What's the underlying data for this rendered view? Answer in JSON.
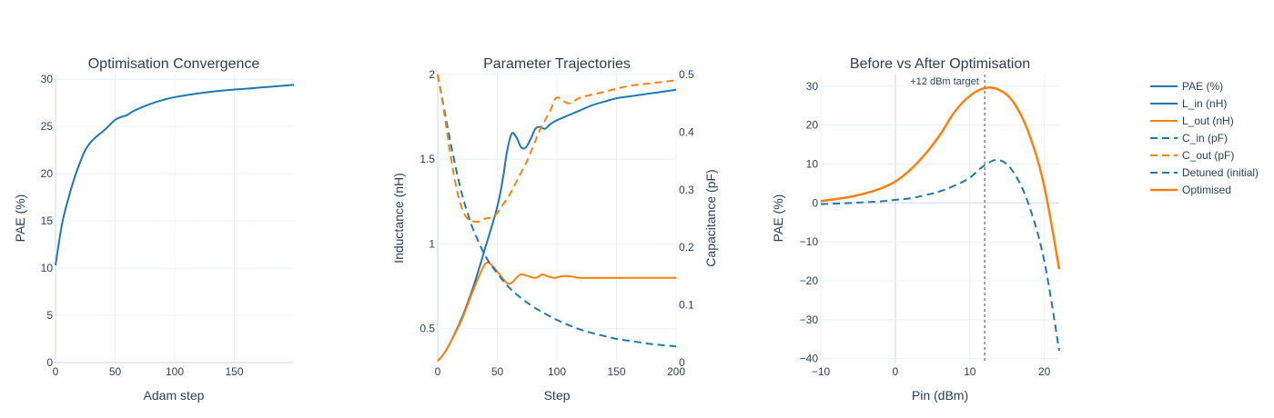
{
  "colors": {
    "blue": "#1f77b4",
    "orange": "#ff7f0e",
    "text": "#2a3f5f",
    "grid": "#ebf0f8",
    "vline": "#808080"
  },
  "chart_data": [
    {
      "type": "line",
      "title": "Optimisation Convergence",
      "xlabel": "Adam step",
      "ylabel": "PAE (%)",
      "xlim": [
        0,
        200
      ],
      "ylim": [
        0,
        30.5
      ],
      "xticks": [
        0,
        50,
        100,
        150
      ],
      "xtick_labels": [
        "0",
        "50",
        "100",
        "150"
      ],
      "yticks": [
        0,
        5,
        10,
        15,
        20,
        25,
        30
      ],
      "ytick_labels": [
        "0",
        "5",
        "10",
        "15",
        "20",
        "25",
        "30"
      ],
      "series": [
        {
          "name": "PAE (%)",
          "color": "#1f77b4",
          "dash": "solid",
          "x": [
            0,
            3,
            6,
            10,
            15,
            20,
            25,
            30,
            35,
            40,
            45,
            50,
            55,
            60,
            65,
            70,
            80,
            90,
            100,
            120,
            140,
            160,
            180,
            200
          ],
          "y": [
            10.3,
            12.8,
            15.0,
            17.0,
            19.2,
            21.0,
            22.5,
            23.4,
            24.0,
            24.5,
            25.1,
            25.7,
            26.0,
            26.2,
            26.6,
            26.9,
            27.4,
            27.8,
            28.1,
            28.5,
            28.8,
            29.0,
            29.2,
            29.4
          ]
        }
      ]
    },
    {
      "type": "line",
      "title": "Parameter Trajectories",
      "xlabel": "Step",
      "ylabel": "Inductance (nH)",
      "y2label": "Capacitance (pF)",
      "xlim": [
        0,
        200
      ],
      "ylim": [
        0.3,
        2.0
      ],
      "y2lim": [
        0,
        0.5
      ],
      "xticks": [
        0,
        50,
        100,
        150,
        200
      ],
      "xtick_labels": [
        "0",
        "50",
        "100",
        "150",
        "200"
      ],
      "yticks": [
        0.5,
        1,
        1.5,
        2
      ],
      "ytick_labels": [
        "0.5",
        "1",
        "1.5",
        "2"
      ],
      "y2ticks": [
        0,
        0.1,
        0.2,
        0.3,
        0.4,
        0.5
      ],
      "y2tick_labels": [
        "0",
        "0.1",
        "0.2",
        "0.3",
        "0.4",
        "0.5"
      ],
      "series": [
        {
          "name": "L_in (nH)",
          "color": "#1f77b4",
          "dash": "solid",
          "axis": "y",
          "x": [
            0,
            5,
            10,
            20,
            30,
            40,
            50,
            55,
            58,
            62,
            66,
            70,
            74,
            78,
            82,
            86,
            90,
            95,
            100,
            110,
            120,
            130,
            140,
            150,
            160,
            170,
            180,
            190,
            200
          ],
          "y": [
            0.31,
            0.35,
            0.41,
            0.56,
            0.75,
            0.98,
            1.22,
            1.4,
            1.54,
            1.65,
            1.63,
            1.57,
            1.57,
            1.62,
            1.68,
            1.69,
            1.68,
            1.71,
            1.73,
            1.76,
            1.79,
            1.82,
            1.84,
            1.86,
            1.87,
            1.88,
            1.89,
            1.9,
            1.91
          ]
        },
        {
          "name": "L_out (nH)",
          "color": "#ff7f0e",
          "dash": "solid",
          "axis": "y",
          "x": [
            0,
            5,
            10,
            20,
            30,
            38,
            42,
            46,
            52,
            58,
            62,
            66,
            70,
            76,
            82,
            88,
            92,
            98,
            104,
            110,
            120,
            140,
            160,
            180,
            200
          ],
          "y": [
            0.31,
            0.35,
            0.41,
            0.55,
            0.73,
            0.86,
            0.89,
            0.87,
            0.82,
            0.77,
            0.77,
            0.8,
            0.82,
            0.81,
            0.8,
            0.82,
            0.81,
            0.8,
            0.81,
            0.81,
            0.8,
            0.8,
            0.8,
            0.8,
            0.8
          ]
        },
        {
          "name": "C_in (pF)",
          "color": "#1f77b4",
          "dash": "dash",
          "axis": "y2",
          "x": [
            0,
            5,
            10,
            15,
            20,
            25,
            30,
            40,
            50,
            60,
            70,
            80,
            90,
            100,
            110,
            120,
            130,
            140,
            150,
            160,
            170,
            180,
            190,
            200
          ],
          "y": [
            0.5,
            0.445,
            0.39,
            0.34,
            0.295,
            0.26,
            0.23,
            0.185,
            0.155,
            0.13,
            0.112,
            0.097,
            0.085,
            0.074,
            0.065,
            0.057,
            0.051,
            0.046,
            0.041,
            0.038,
            0.035,
            0.032,
            0.03,
            0.028
          ]
        },
        {
          "name": "C_out (pF)",
          "color": "#ff7f0e",
          "dash": "dash",
          "axis": "y2",
          "x": [
            0,
            5,
            10,
            15,
            20,
            25,
            30,
            35,
            40,
            45,
            50,
            55,
            60,
            65,
            70,
            75,
            80,
            85,
            90,
            95,
            100,
            110,
            120,
            140,
            160,
            180,
            200
          ],
          "y": [
            0.5,
            0.44,
            0.37,
            0.31,
            0.27,
            0.25,
            0.245,
            0.245,
            0.25,
            0.252,
            0.26,
            0.275,
            0.29,
            0.31,
            0.33,
            0.35,
            0.375,
            0.4,
            0.42,
            0.44,
            0.46,
            0.45,
            0.46,
            0.47,
            0.48,
            0.485,
            0.49
          ]
        }
      ]
    },
    {
      "type": "line",
      "title": "Before vs After Optimisation",
      "xlabel": "Pin (dBm)",
      "ylabel": "PAE (%)",
      "xlim": [
        -10,
        22
      ],
      "ylim": [
        -41,
        33
      ],
      "xticks": [
        -10,
        0,
        10,
        20
      ],
      "xtick_labels": [
        "−10",
        "0",
        "10",
        "20"
      ],
      "yticks": [
        -40,
        -30,
        -20,
        -10,
        0,
        10,
        20,
        30
      ],
      "ytick_labels": [
        "−40",
        "−30",
        "−20",
        "−10",
        "0",
        "10",
        "20",
        "30"
      ],
      "vline": {
        "x": 12,
        "label": "+12 dBm target"
      },
      "series": [
        {
          "name": "Detuned (initial)",
          "color": "#1f77b4",
          "dash": "dash",
          "x": [
            -10,
            -6,
            -4,
            -2,
            0,
            2,
            4,
            6,
            8,
            10,
            12,
            14,
            16,
            18,
            20,
            22
          ],
          "y": [
            -0.3,
            0,
            0.2,
            0.4,
            0.8,
            1.2,
            2,
            3,
            4.5,
            6.5,
            9.7,
            11,
            7.5,
            -1,
            -15,
            -38
          ]
        },
        {
          "name": "Optimised",
          "color": "#ff7f0e",
          "dash": "solid",
          "x": [
            -10,
            -8,
            -6,
            -4,
            -2,
            0,
            2,
            4,
            6,
            8,
            10,
            12,
            14,
            16,
            18,
            20,
            22
          ],
          "y": [
            0.5,
            1,
            1.6,
            2.5,
            3.7,
            5.5,
            8.5,
            12.5,
            17.5,
            23.5,
            27.5,
            29.5,
            29,
            25.5,
            17.5,
            4.2,
            -17
          ]
        }
      ]
    }
  ],
  "legend": {
    "items": [
      {
        "label": "PAE (%)",
        "color": "#1f77b4",
        "dash": "solid"
      },
      {
        "label": "L_in (nH)",
        "color": "#1f77b4",
        "dash": "solid"
      },
      {
        "label": "L_out (nH)",
        "color": "#ff7f0e",
        "dash": "solid"
      },
      {
        "label": "C_in (pF)",
        "color": "#1f77b4",
        "dash": "dash"
      },
      {
        "label": "C_out (pF)",
        "color": "#ff7f0e",
        "dash": "dash"
      },
      {
        "label": "Detuned (initial)",
        "color": "#1f77b4",
        "dash": "dash"
      },
      {
        "label": "Optimised",
        "color": "#ff7f0e",
        "dash": "solid"
      }
    ]
  }
}
